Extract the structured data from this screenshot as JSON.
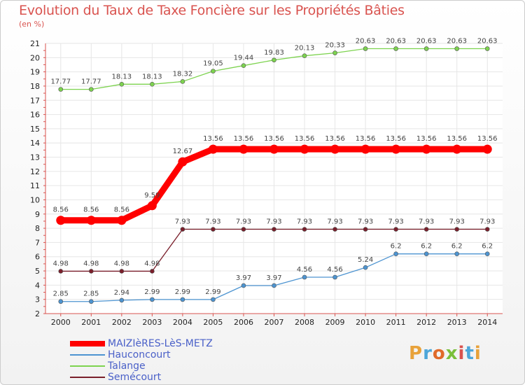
{
  "header": {
    "title": "Evolution du Taux de Taxe Foncière sur les Propriétés Bâties",
    "unit": "(en %)"
  },
  "logo": {
    "text": "Proxiti",
    "colors": [
      "#e8a23a",
      "#4da6d9",
      "#e06a2a",
      "#7bbf3a",
      "#d9534f",
      "#4da6d9",
      "#e8a23a"
    ]
  },
  "chart_data": {
    "type": "line",
    "x": [
      2000,
      2001,
      2002,
      2003,
      2004,
      2005,
      2006,
      2007,
      2008,
      2009,
      2010,
      2011,
      2012,
      2013,
      2014
    ],
    "ylim": [
      2,
      21
    ],
    "yticks": [
      2,
      3,
      4,
      5,
      6,
      7,
      8,
      9,
      10,
      11,
      12,
      13,
      14,
      15,
      16,
      17,
      18,
      19,
      20,
      21
    ],
    "grid": true,
    "legend_position": "bottom-left",
    "series": [
      {
        "name": "MAIZIèRES-LèS-METZ",
        "color": "#ff0000",
        "values": [
          8.56,
          8.56,
          8.56,
          9.59,
          12.67,
          13.56,
          13.56,
          13.56,
          13.56,
          13.56,
          13.56,
          13.56,
          13.56,
          13.56,
          13.56
        ],
        "labels": [
          "8.56",
          "8.56",
          "8.56",
          "9.59",
          "12.67",
          "13.56",
          "13.56",
          "13.56",
          "13.56",
          "13.56",
          "13.56",
          "13.56",
          "13.56",
          "13.56",
          "13.56"
        ]
      },
      {
        "name": "Hauconcourt",
        "color": "#4d94d1",
        "values": [
          2.85,
          2.85,
          2.94,
          2.99,
          2.99,
          2.99,
          3.97,
          3.97,
          4.56,
          4.56,
          5.24,
          6.2,
          6.2,
          6.2,
          6.2
        ],
        "labels": [
          "2.85",
          "2.85",
          "2.94",
          "2.99",
          "2.99",
          "2.99",
          "3.97",
          "3.97",
          "4.56",
          "4.56",
          "5.24",
          "6.2",
          "6.2",
          "6.2",
          "6.2"
        ]
      },
      {
        "name": "Talange",
        "color": "#7dd34f",
        "values": [
          17.77,
          17.77,
          18.13,
          18.13,
          18.32,
          19.05,
          19.44,
          19.83,
          20.13,
          20.33,
          20.63,
          20.63,
          20.63,
          20.63,
          20.63
        ],
        "labels": [
          "17.77",
          "17.77",
          "18.13",
          "18.13",
          "18.32",
          "19.05",
          "19.44",
          "19.83",
          "20.13",
          "20.33",
          "20.63",
          "20.63",
          "20.63",
          "20.63",
          "20.63"
        ]
      },
      {
        "name": "Semécourt",
        "color": "#7a1f2b",
        "values": [
          4.98,
          4.98,
          4.98,
          4.98,
          7.93,
          7.93,
          7.93,
          7.93,
          7.93,
          7.93,
          7.93,
          7.93,
          7.93,
          7.93,
          7.93
        ],
        "labels": [
          "4.98",
          "4.98",
          "4.98",
          "4.98",
          "7.93",
          "7.93",
          "7.93",
          "7.93",
          "7.93",
          "7.93",
          "7.93",
          "7.93",
          "7.93",
          "7.93",
          "7.93"
        ]
      }
    ]
  }
}
